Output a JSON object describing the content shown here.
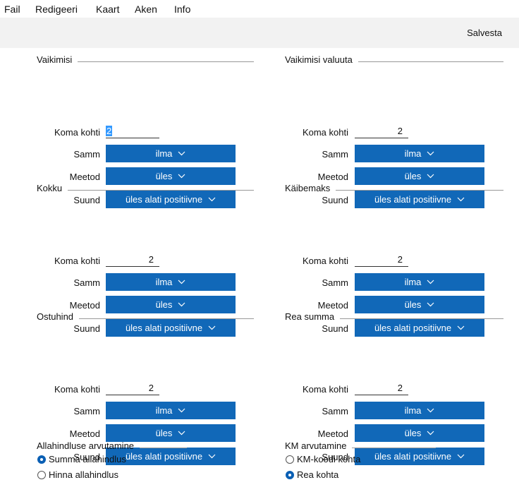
{
  "menu": [
    "Fail",
    "Redigeeri",
    "Kaart",
    "Aken",
    "Info"
  ],
  "toolbar": {
    "save_button": "Salvesta"
  },
  "sections": [
    {
      "title": "Vaikimisi",
      "fields": [
        {
          "label": "Koma kohti",
          "value": 2,
          "focused": true
        },
        {
          "label": "Samm",
          "value": "ilma"
        },
        {
          "label": "Meetod",
          "value": "üles"
        },
        {
          "label": "Suund",
          "value": "üles alati positiivne"
        }
      ]
    },
    {
      "title": "Vaikimisi valuuta",
      "fields": [
        {
          "label": "Koma kohti",
          "value": 2
        },
        {
          "label": "Samm",
          "value": "ilma"
        },
        {
          "label": "Meetod",
          "value": "üles"
        },
        {
          "label": "Suund",
          "value": "üles alati positiivne"
        }
      ]
    },
    {
      "title": "Kokku",
      "fields": [
        {
          "label": "Koma kohti",
          "value": 2
        },
        {
          "label": "Samm",
          "value": "ilma"
        },
        {
          "label": "Meetod",
          "value": "üles"
        },
        {
          "label": "Suund",
          "value": "üles alati positiivne"
        }
      ]
    },
    {
      "title": "Käibemaks",
      "fields": [
        {
          "label": "Koma kohti",
          "value": 2
        },
        {
          "label": "Samm",
          "value": "ilma"
        },
        {
          "label": "Meetod",
          "value": "üles"
        },
        {
          "label": "Suund",
          "value": "üles alati positiivne"
        }
      ]
    },
    {
      "title": "Ostuhind",
      "fields": [
        {
          "label": "Koma kohti",
          "value": 2
        },
        {
          "label": "Samm",
          "value": "ilma"
        },
        {
          "label": "Meetod",
          "value": "üles"
        },
        {
          "label": "Suund",
          "value": "üles alati positiivne"
        }
      ]
    },
    {
      "title": "Rea summa",
      "fields": [
        {
          "label": "Koma kohti",
          "value": 2
        },
        {
          "label": "Samm",
          "value": "ilma"
        },
        {
          "label": "Meetod",
          "value": "üles"
        },
        {
          "label": "Suund",
          "value": "üles alati positiivne"
        }
      ]
    }
  ],
  "radio_groups": [
    {
      "title": "Allahindluse arvutamine",
      "options": [
        {
          "label": "Summa allahindlus",
          "selected": true
        },
        {
          "label": "Hinna allahindlus",
          "selected": false
        }
      ]
    },
    {
      "title": "KM arvutamine",
      "options": [
        {
          "label": "KM-koodi kohta",
          "selected": false
        },
        {
          "label": "Rea kohta",
          "selected": true
        }
      ]
    }
  ]
}
